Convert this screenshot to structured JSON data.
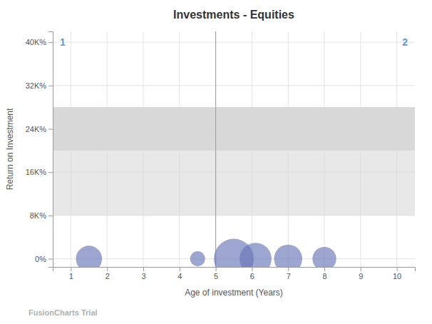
{
  "chart_data": {
    "type": "bubble",
    "title": "Investments - Equities",
    "xlabel": "Age of investment (Years)",
    "ylabel": "Return on Investment",
    "xlim": [
      0.5,
      10.5
    ],
    "ylim": [
      -1500,
      42000
    ],
    "xticks": [
      1,
      2,
      3,
      4,
      5,
      6,
      7,
      8,
      9,
      10
    ],
    "yticks": [
      {
        "value": 0,
        "label": "0%"
      },
      {
        "value": 8000,
        "label": "8K%"
      },
      {
        "value": 16000,
        "label": "16K%"
      },
      {
        "value": 24000,
        "label": "24K%"
      },
      {
        "value": 32000,
        "label": "32K%"
      },
      {
        "value": 40000,
        "label": "40K%"
      }
    ],
    "grid": true,
    "x": [
      1.5,
      4.5,
      5.5,
      6.1,
      7.0,
      8.0
    ],
    "values": [
      0,
      0,
      0,
      0,
      0,
      0
    ],
    "size": [
      600,
      200,
      1400,
      900,
      700,
      500
    ],
    "color": "#6874b8",
    "bands": [
      {
        "from": 8000,
        "to": 28000,
        "color": "#e8e8e8"
      },
      {
        "from": 20000,
        "to": 28000,
        "color": "#d8d8d8"
      }
    ],
    "vlines": [
      5
    ],
    "annotations": [
      {
        "text": "1",
        "color": "#5b9bd5"
      },
      {
        "text": "2",
        "color": "#5b9bd5"
      }
    ],
    "watermark": "FusionCharts Trial"
  }
}
